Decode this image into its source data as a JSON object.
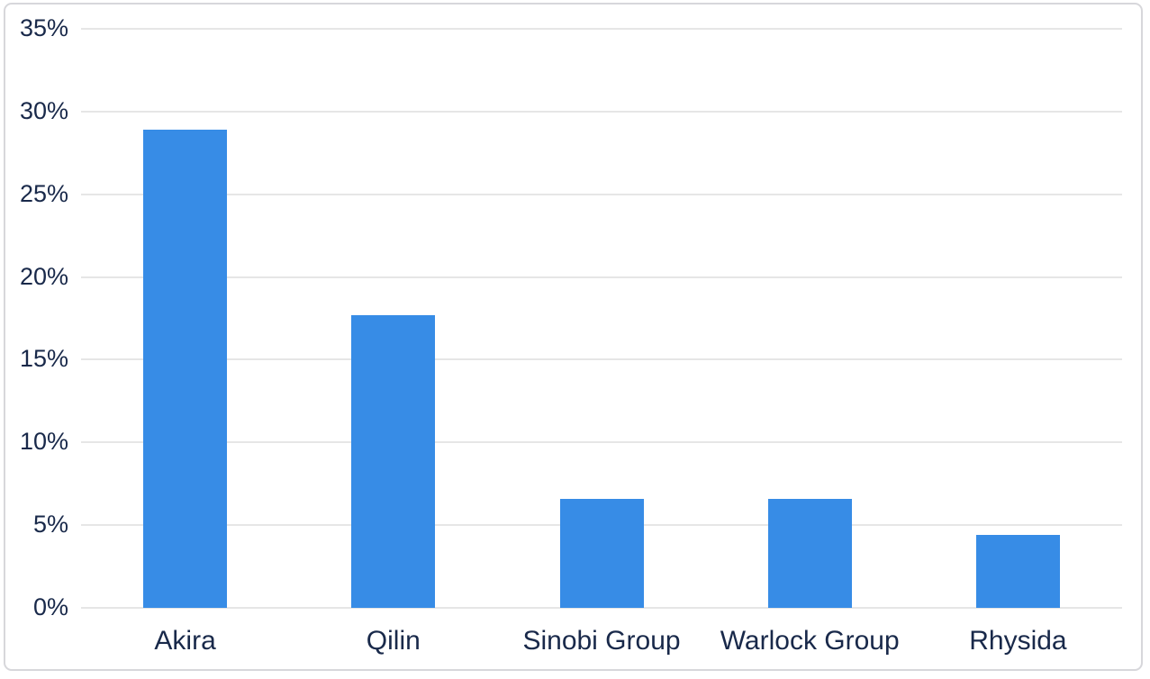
{
  "chart_data": {
    "type": "bar",
    "title": "",
    "xlabel": "",
    "ylabel": "",
    "categories": [
      "Akira",
      "Qilin",
      "Sinobi Group",
      "Warlock Group",
      "Rhysida"
    ],
    "values": [
      28.9,
      17.7,
      6.6,
      6.6,
      4.4
    ],
    "value_unit": "%",
    "ylim": [
      0,
      35
    ],
    "ytick_step": 5,
    "ytick_labels": [
      "0%",
      "5%",
      "10%",
      "15%",
      "20%",
      "25%",
      "30%",
      "35%"
    ],
    "grid": true,
    "legend": "none",
    "colors": {
      "bar": "#378ce6",
      "axis_text": "#19294a",
      "gridline": "#e6e6e6",
      "card_border": "#d7d7db",
      "background": "#ffffff"
    }
  }
}
